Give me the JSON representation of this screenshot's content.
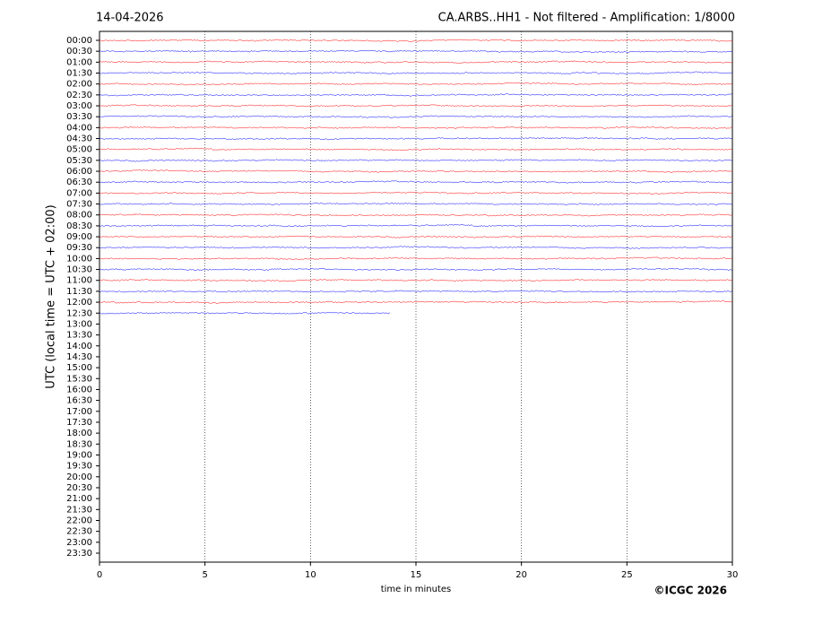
{
  "chart_data": {
    "type": "helicorder",
    "date": "14-04-2026",
    "title": "CA.ARBS..HH1 - Not filtered - Amplification: 1/8000",
    "ylabel": "UTC (local time = UTC + 02:00)",
    "xlabel": "time in minutes",
    "copyright": "©ICGC 2026",
    "categories": [
      "00:00",
      "00:30",
      "01:00",
      "01:30",
      "02:00",
      "02:30",
      "03:00",
      "03:30",
      "04:00",
      "04:30",
      "05:00",
      "05:30",
      "06:00",
      "06:30",
      "07:00",
      "07:30",
      "08:00",
      "08:30",
      "09:00",
      "09:30",
      "10:00",
      "10:30",
      "11:00",
      "11:30",
      "12:00",
      "12:30",
      "13:00",
      "13:30",
      "14:00",
      "14:30",
      "15:00",
      "15:30",
      "16:00",
      "16:30",
      "17:00",
      "17:30",
      "18:00",
      "18:30",
      "19:00",
      "19:30",
      "20:00",
      "20:30",
      "21:00",
      "21:30",
      "22:00",
      "22:30",
      "23:00",
      "23:30"
    ],
    "trace_end": [
      30,
      30,
      30,
      30,
      30,
      30,
      30,
      30,
      30,
      30,
      30,
      30,
      30,
      30,
      30,
      30,
      30,
      30,
      30,
      30,
      30,
      30,
      30,
      30,
      30,
      13.8
    ],
    "colors": [
      "#ff0000",
      "#0000ff"
    ],
    "xlim": [
      0,
      30
    ],
    "xticks": [
      0,
      5,
      10,
      15,
      20,
      25,
      30
    ],
    "grid": true
  }
}
